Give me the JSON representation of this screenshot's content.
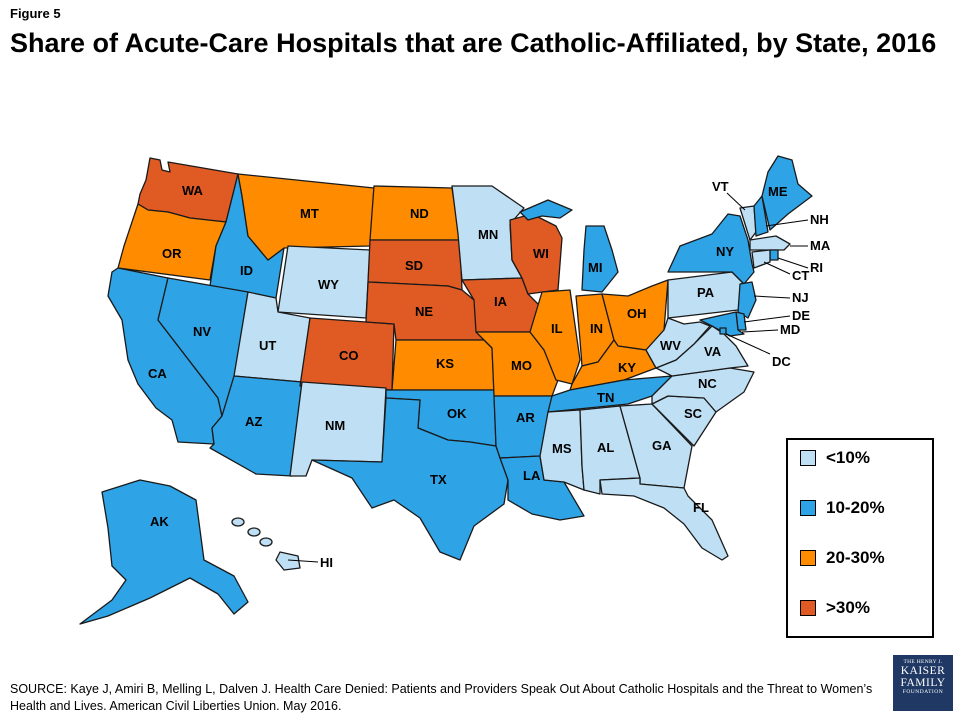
{
  "figure_label": "Figure 5",
  "title": "Share of Acute-Care Hospitals that are Catholic-Affiliated, by State, 2016",
  "source": "SOURCE: Kaye J, Amiri B, Melling L, Dalven J. Health Care Denied: Patients and Providers Speak Out About Catholic Hospitals and the Threat to Women’s Health and Lives. American Civil Liberties Union. May 2016.",
  "logo": {
    "top": "THE HENRY J.",
    "line1": "KAISER",
    "line2": "FAMILY",
    "bottom": "FOUNDATION"
  },
  "legend": [
    {
      "label": "<10%",
      "color": "#bfe0f4"
    },
    {
      "label": "10-20%",
      "color": "#2ea3e6"
    },
    {
      "label": "20-30%",
      "color": "#ff8c00"
    },
    {
      "label": ">30%",
      "color": "#e05a23"
    }
  ],
  "states": [
    {
      "abbr": "WA",
      "bin": 3
    },
    {
      "abbr": "OR",
      "bin": 2
    },
    {
      "abbr": "CA",
      "bin": 1
    },
    {
      "abbr": "ID",
      "bin": 1
    },
    {
      "abbr": "NV",
      "bin": 1
    },
    {
      "abbr": "MT",
      "bin": 2
    },
    {
      "abbr": "WY",
      "bin": 0
    },
    {
      "abbr": "UT",
      "bin": 0
    },
    {
      "abbr": "AZ",
      "bin": 1
    },
    {
      "abbr": "CO",
      "bin": 3
    },
    {
      "abbr": "NM",
      "bin": 0
    },
    {
      "abbr": "ND",
      "bin": 2
    },
    {
      "abbr": "SD",
      "bin": 3
    },
    {
      "abbr": "NE",
      "bin": 3
    },
    {
      "abbr": "KS",
      "bin": 2
    },
    {
      "abbr": "OK",
      "bin": 1
    },
    {
      "abbr": "TX",
      "bin": 1
    },
    {
      "abbr": "MN",
      "bin": 0
    },
    {
      "abbr": "IA",
      "bin": 3
    },
    {
      "abbr": "MO",
      "bin": 2
    },
    {
      "abbr": "AR",
      "bin": 1
    },
    {
      "abbr": "LA",
      "bin": 1
    },
    {
      "abbr": "WI",
      "bin": 3
    },
    {
      "abbr": "IL",
      "bin": 2
    },
    {
      "abbr": "MI",
      "bin": 1
    },
    {
      "abbr": "IN",
      "bin": 2
    },
    {
      "abbr": "OH",
      "bin": 2
    },
    {
      "abbr": "KY",
      "bin": 2
    },
    {
      "abbr": "TN",
      "bin": 1
    },
    {
      "abbr": "MS",
      "bin": 0
    },
    {
      "abbr": "AL",
      "bin": 0
    },
    {
      "abbr": "GA",
      "bin": 0
    },
    {
      "abbr": "FL",
      "bin": 0
    },
    {
      "abbr": "SC",
      "bin": 0
    },
    {
      "abbr": "NC",
      "bin": 0
    },
    {
      "abbr": "VA",
      "bin": 0
    },
    {
      "abbr": "WV",
      "bin": 0
    },
    {
      "abbr": "PA",
      "bin": 0
    },
    {
      "abbr": "NY",
      "bin": 1
    },
    {
      "abbr": "VT",
      "bin": 0
    },
    {
      "abbr": "NH",
      "bin": 1
    },
    {
      "abbr": "ME",
      "bin": 1
    },
    {
      "abbr": "MA",
      "bin": 0
    },
    {
      "abbr": "RI",
      "bin": 1
    },
    {
      "abbr": "CT",
      "bin": 0
    },
    {
      "abbr": "NJ",
      "bin": 1
    },
    {
      "abbr": "DE",
      "bin": 1
    },
    {
      "abbr": "MD",
      "bin": 1
    },
    {
      "abbr": "DC",
      "bin": 1
    },
    {
      "abbr": "AK",
      "bin": 1
    },
    {
      "abbr": "HI",
      "bin": 0
    }
  ]
}
